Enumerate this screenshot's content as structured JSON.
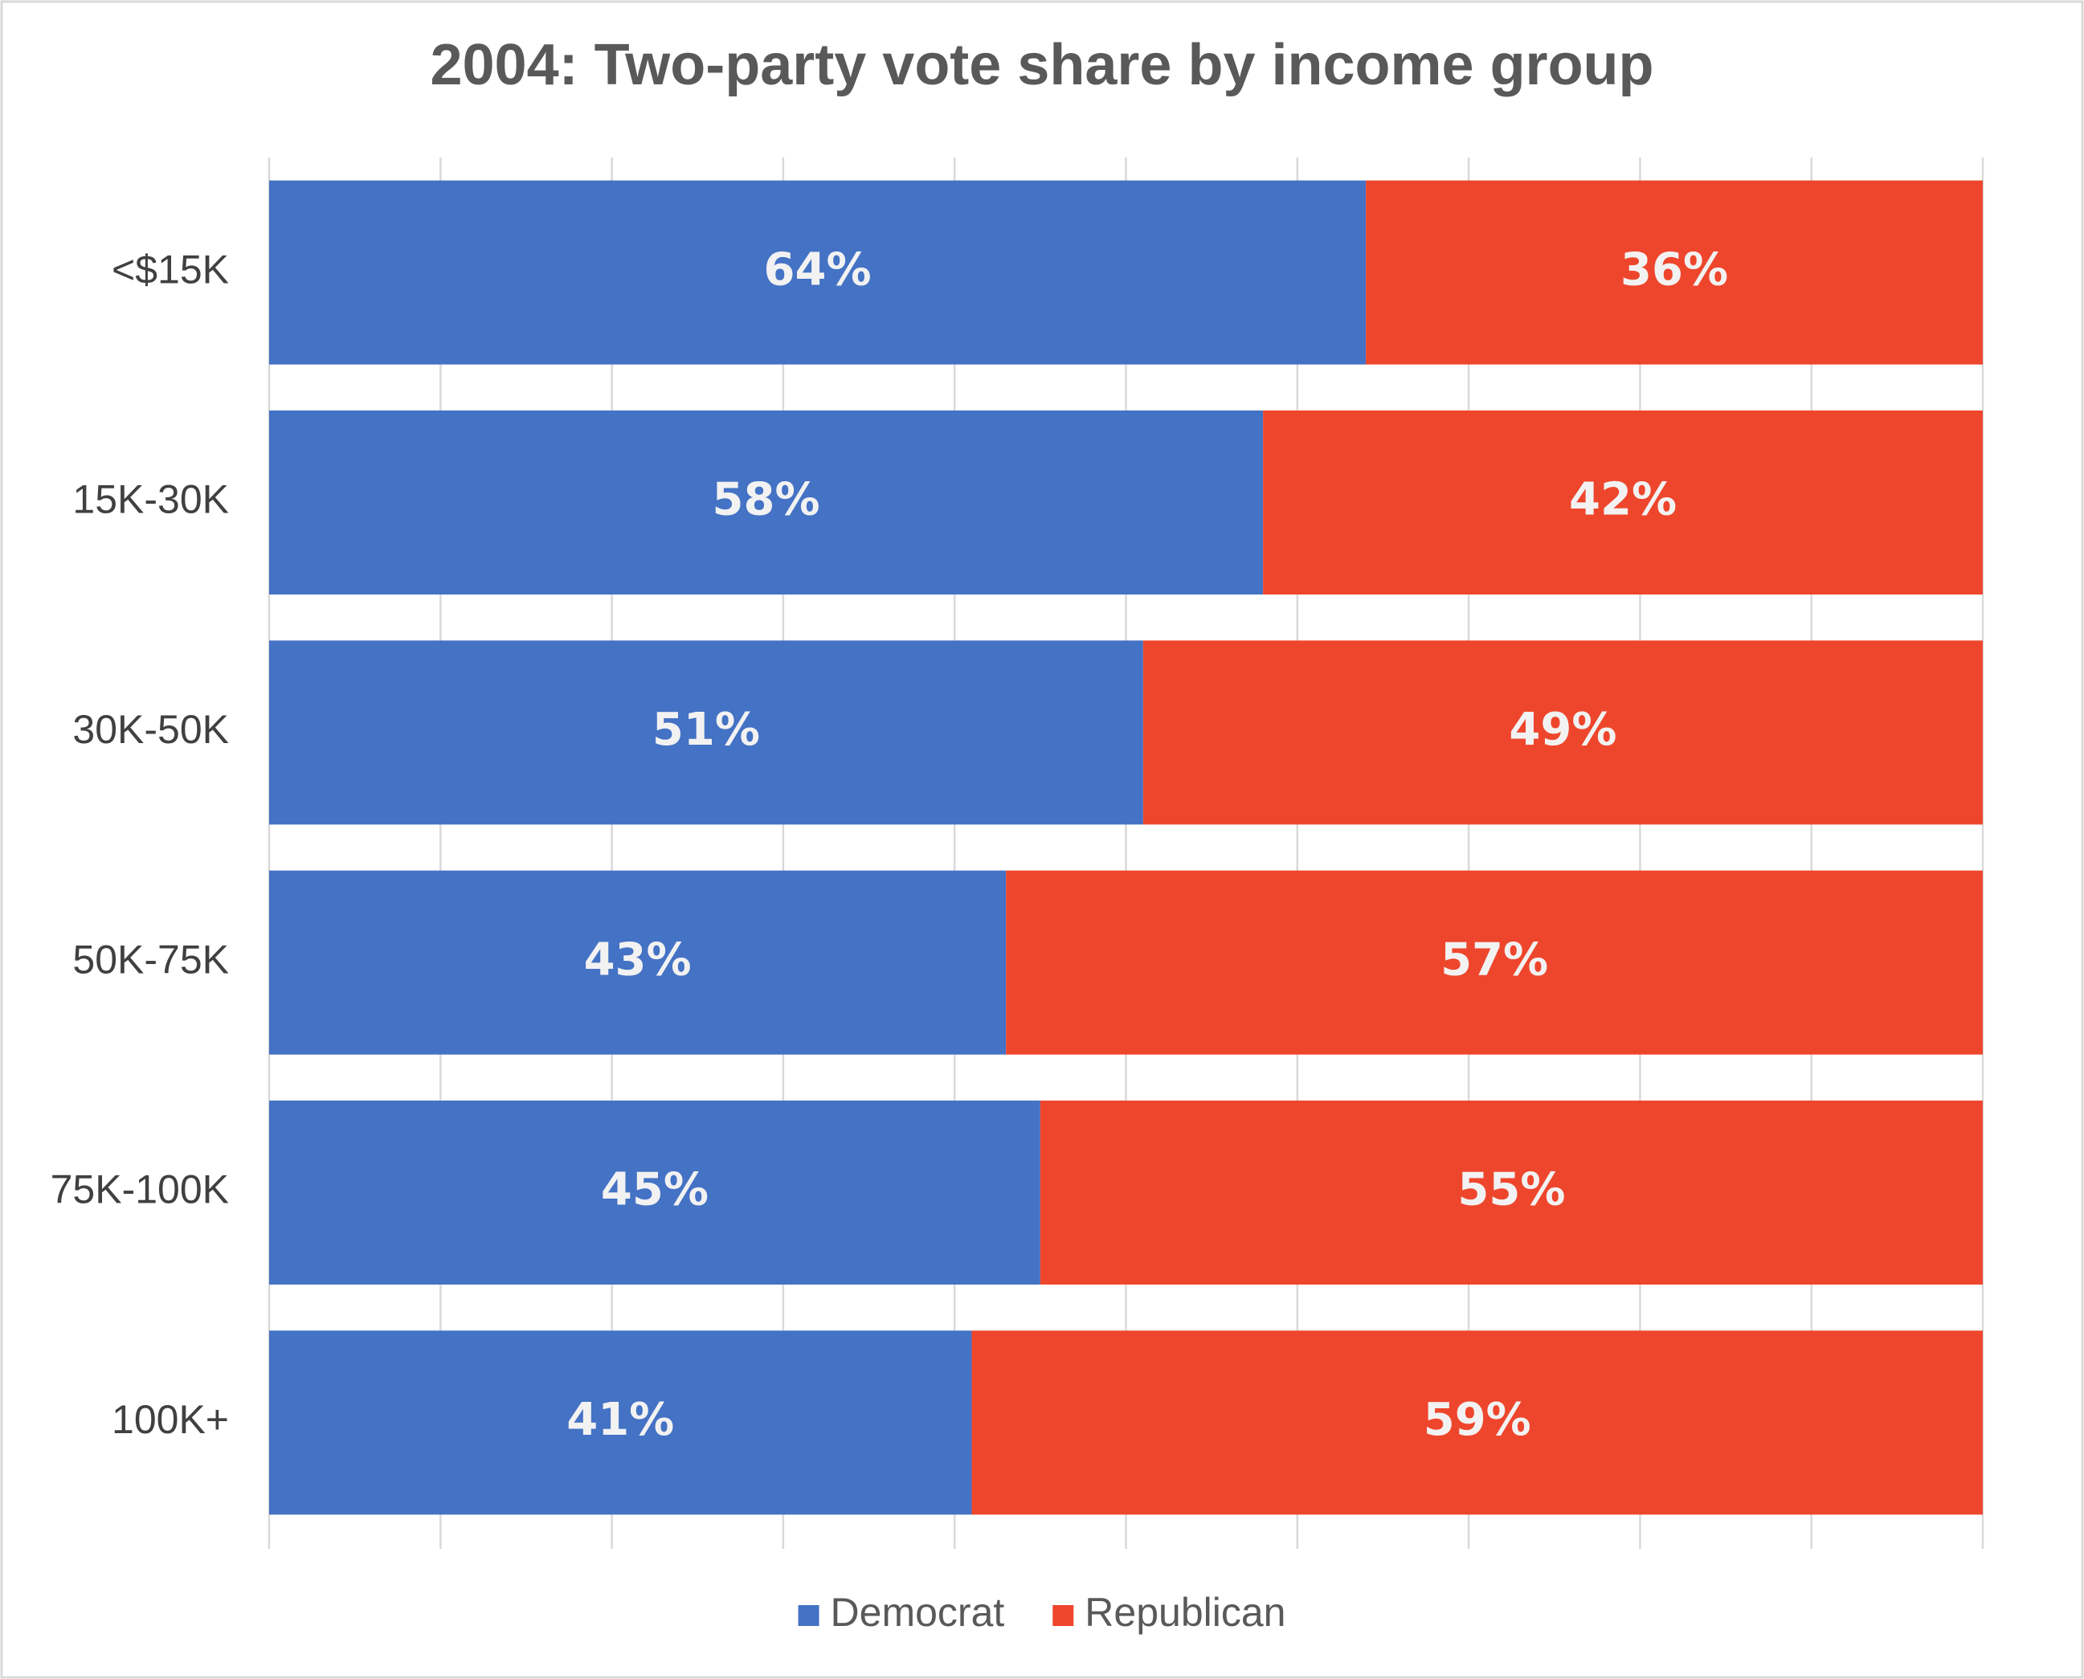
{
  "chart_data": {
    "type": "stacked-bar-horizontal",
    "title": "2004: Two-party vote share by income group",
    "categories": [
      "<$15K",
      "15K-30K",
      "30K-50K",
      "50K-75K",
      "75K-100K",
      "100K+"
    ],
    "series": [
      {
        "name": "Democrat",
        "color": "#4472c4",
        "values": [
          64,
          58,
          51,
          43,
          45,
          41
        ],
        "value_labels": [
          "64%",
          "58%",
          "51%",
          "43%",
          "45%",
          "41%"
        ]
      },
      {
        "name": "Republican",
        "color": "#ee462c",
        "values": [
          36,
          42,
          49,
          57,
          55,
          59
        ],
        "value_labels": [
          "36%",
          "42%",
          "49%",
          "57%",
          "55%",
          "59%"
        ]
      }
    ],
    "xlim": [
      0,
      100
    ],
    "xticks": [
      0,
      10,
      20,
      30,
      40,
      50,
      60,
      70,
      80,
      90,
      100
    ],
    "grid": true,
    "legend": "bottom"
  }
}
